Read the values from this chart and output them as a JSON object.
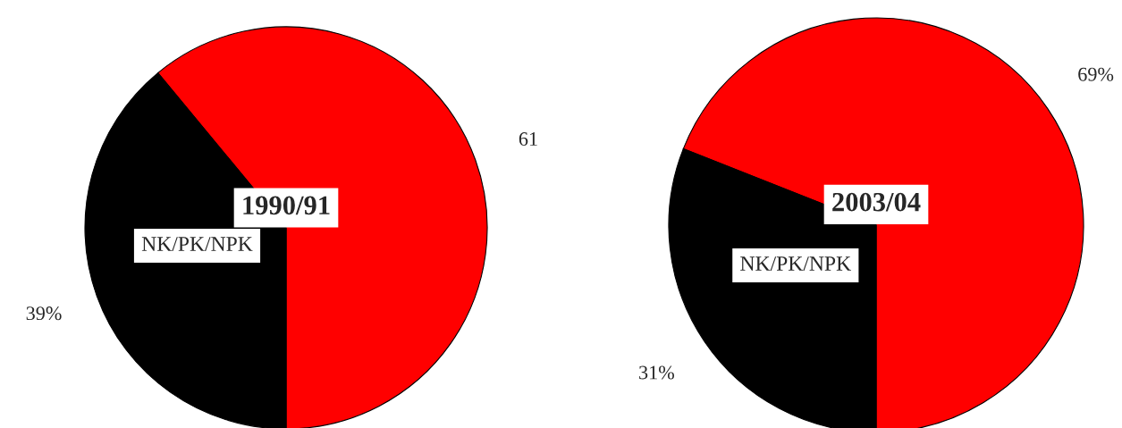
{
  "chart_data": [
    {
      "type": "pie",
      "title": "1990/91",
      "categories": [
        null,
        "NK/PK/NPK"
      ],
      "values": [
        61,
        39
      ],
      "colors": [
        "#ff0000",
        "#000000"
      ],
      "value_labels": [
        "61",
        "39%"
      ]
    },
    {
      "type": "pie",
      "title": "2003/04",
      "categories": [
        null,
        "NK/PK/NPK"
      ],
      "values": [
        69,
        31
      ],
      "colors": [
        "#ff0000",
        "#000000"
      ],
      "value_labels": [
        "69%",
        "31%"
      ]
    }
  ]
}
